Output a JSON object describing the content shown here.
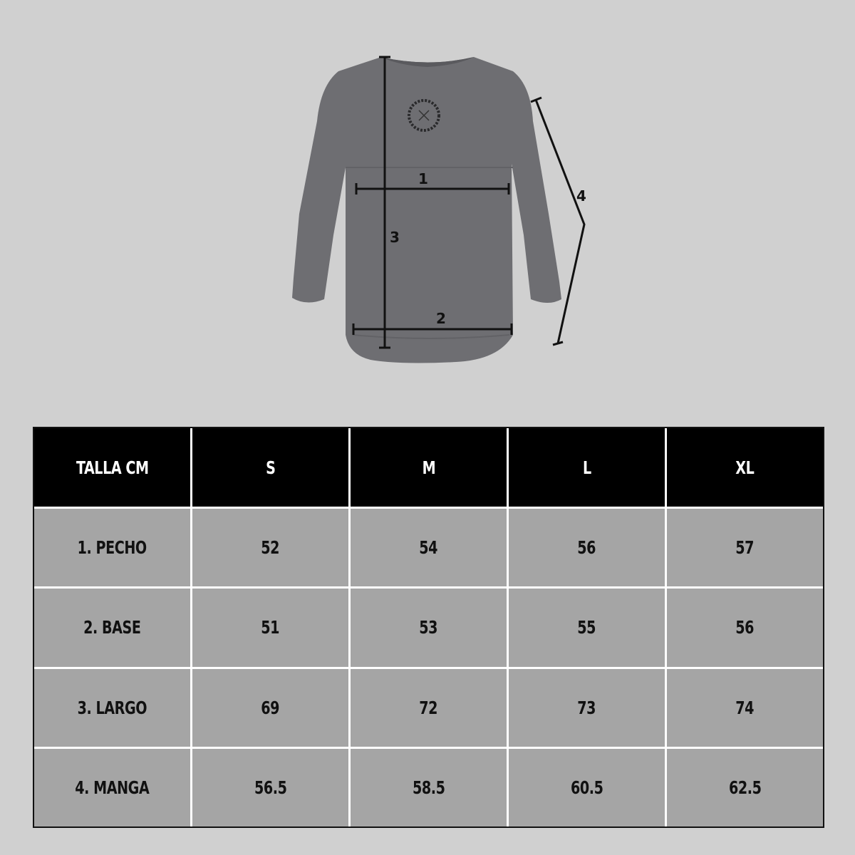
{
  "diagram": {
    "labels": [
      "1",
      "2",
      "3",
      "4"
    ],
    "logo_text": "COLOMBIA MTB PURITITA",
    "colors": {
      "shirt": "#6e6e72",
      "background": "#d0d0d0",
      "lines": "#111111"
    }
  },
  "table": {
    "headers": [
      "TALLA CM",
      "S",
      "M",
      "L",
      "XL"
    ],
    "rows": [
      [
        "1. PECHO",
        "52",
        "54",
        "56",
        "57"
      ],
      [
        "2. BASE",
        "51",
        "53",
        "55",
        "56"
      ],
      [
        "3. LARGO",
        "69",
        "72",
        "73",
        "74"
      ],
      [
        "4. MANGA",
        "56.5",
        "58.5",
        "60.5",
        "62.5"
      ]
    ],
    "colors": {
      "header_bg": "#000000",
      "header_text": "#ffffff",
      "cell_bg": "#a5a5a5",
      "grid": "#ffffff"
    }
  }
}
